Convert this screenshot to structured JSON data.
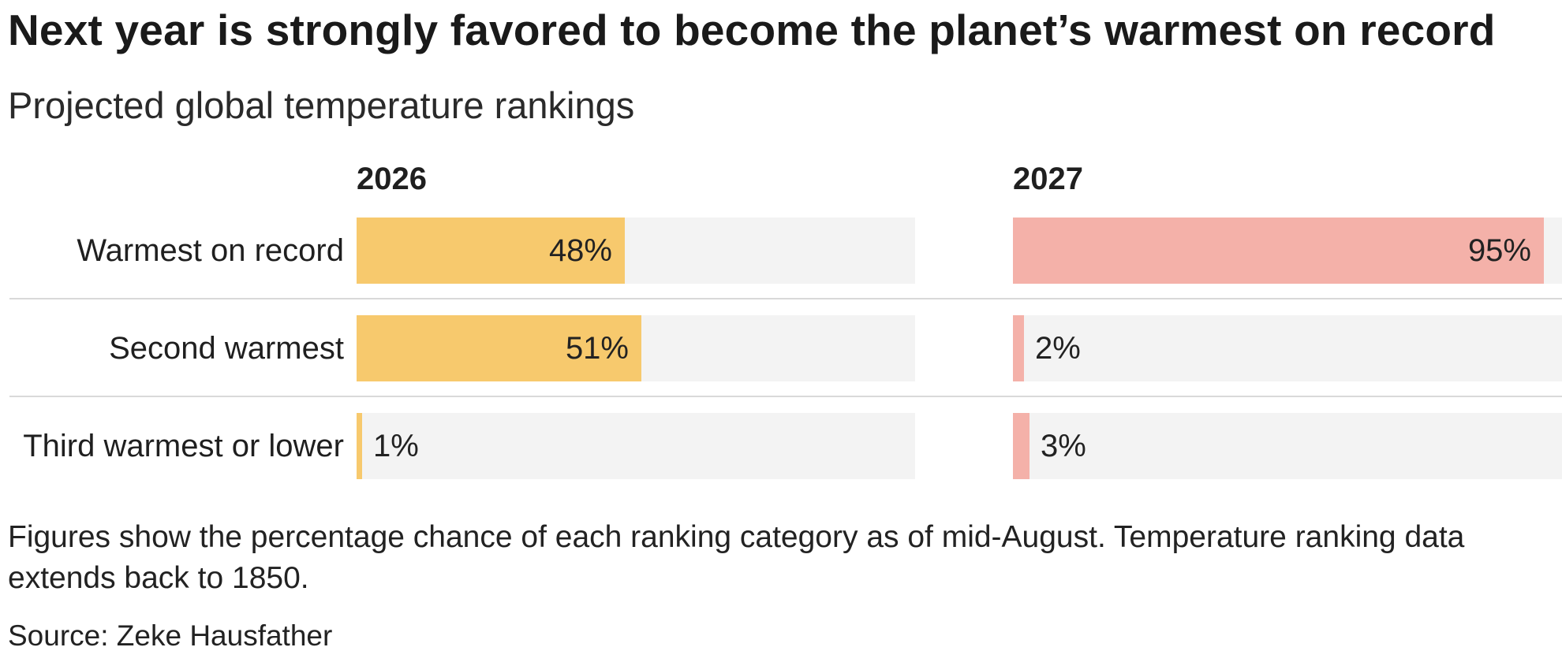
{
  "title": "Next year is strongly favored to become the planet’s warmest on record",
  "subtitle": "Projected global temperature rankings",
  "note": "Figures show the percentage chance of each ranking category as of mid-August. Temperature ranking data extends back to 1850.",
  "source": "Source: Zeke Hausfather",
  "colors": {
    "2026": "#f7c96d",
    "2027": "#f4b1a9",
    "track": "#f3f3f3",
    "divider": "#d9d9d9"
  },
  "chart_data": {
    "type": "bar",
    "orientation": "horizontal",
    "categories": [
      "Warmest on record",
      "Second warmest",
      "Third warmest or lower"
    ],
    "series": [
      {
        "name": "2026",
        "values": [
          48,
          51,
          1
        ],
        "labels": [
          "48%",
          "51%",
          "1%"
        ]
      },
      {
        "name": "2027",
        "values": [
          95,
          2,
          3
        ],
        "labels": [
          "95%",
          "2%",
          "3%"
        ]
      }
    ],
    "xlim": [
      0,
      100
    ],
    "unit": "%"
  }
}
